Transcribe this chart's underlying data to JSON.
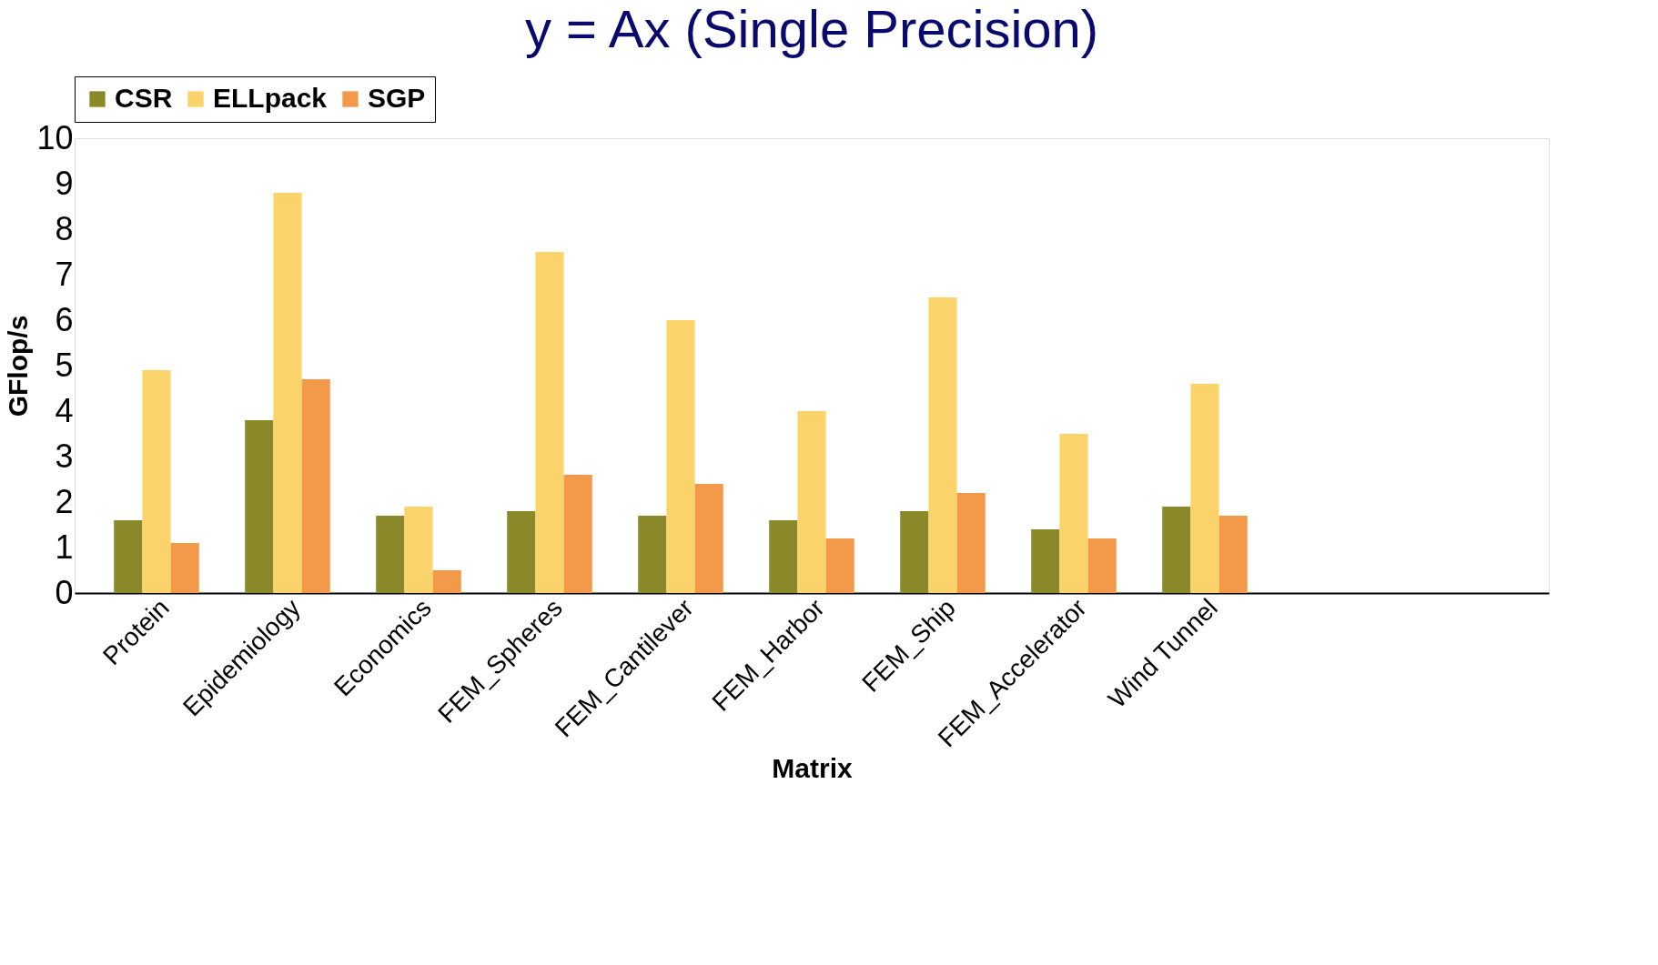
{
  "chart_data": {
    "type": "bar",
    "title": "y = Ax (Single Precision)",
    "xlabel": "Matrix",
    "ylabel": "GFlop/s",
    "categories": [
      "Protein",
      "Epidemiology",
      "Economics",
      "FEM_Spheres",
      "FEM_Cantilever",
      "FEM_Harbor",
      "FEM_Ship",
      "FEM_Accelerator",
      "Wind Tunnel"
    ],
    "series": [
      {
        "name": "CSR",
        "color": "#8a8a2a",
        "values": [
          1.6,
          3.8,
          1.7,
          1.8,
          1.7,
          1.6,
          1.8,
          1.4,
          1.9
        ]
      },
      {
        "name": "ELLpack",
        "color": "#fad36a",
        "values": [
          4.9,
          8.8,
          1.9,
          7.5,
          6.0,
          4.0,
          6.5,
          3.5,
          4.6
        ]
      },
      {
        "name": "SGP",
        "color": "#f29a4a",
        "values": [
          1.1,
          4.7,
          0.5,
          2.6,
          2.4,
          1.2,
          2.2,
          1.2,
          1.7
        ]
      }
    ],
    "ylim": [
      0,
      10
    ],
    "yticks": [
      0,
      1,
      2,
      3,
      4,
      5,
      6,
      7,
      8,
      9,
      10
    ],
    "grid": false,
    "legend": "top"
  }
}
